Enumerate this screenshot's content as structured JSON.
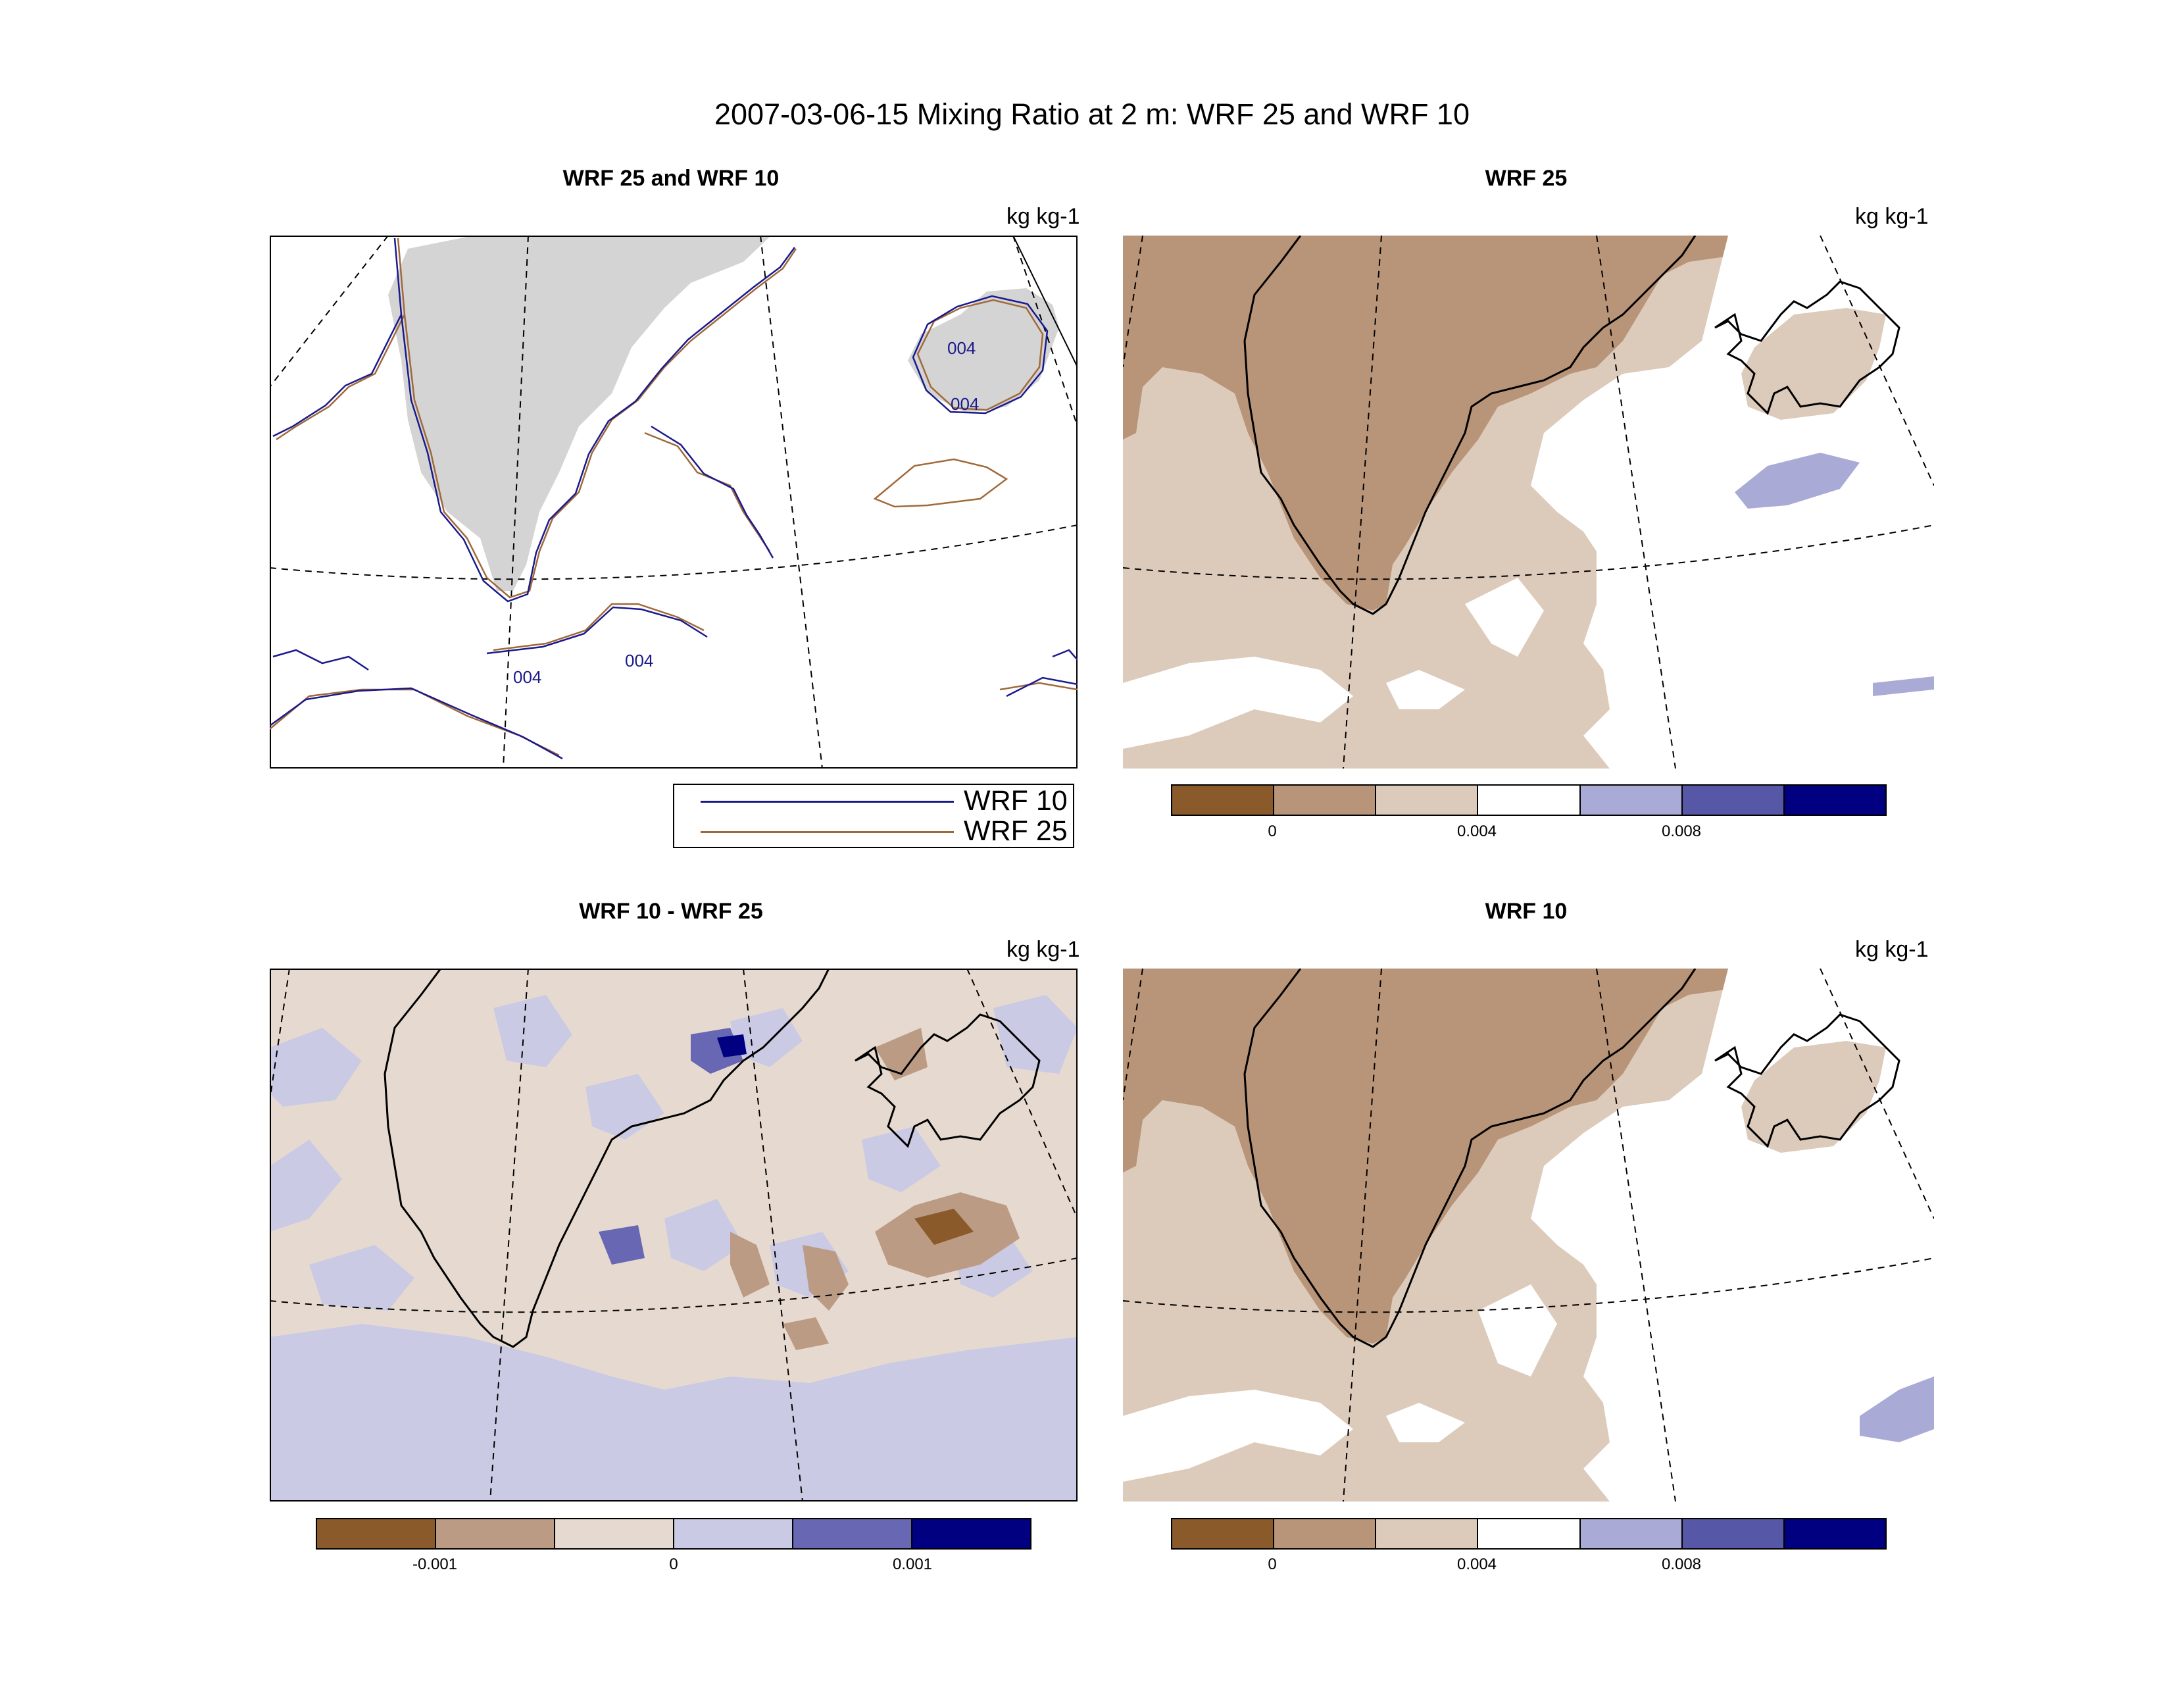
{
  "title": "2007-03-06-15 Mixing Ratio at 2 m: WRF 25 and WRF 10",
  "panels": {
    "top_left": {
      "title": "WRF 25 and WRF 10",
      "units": "kg kg-1"
    },
    "top_right": {
      "title": "WRF 25",
      "units": "kg kg-1"
    },
    "bottom_left": {
      "title": "WRF 10 - WRF 25",
      "units": "kg kg-1"
    },
    "bottom_right": {
      "title": "WRF 10",
      "units": "kg kg-1"
    }
  },
  "contour_labels": [
    "004",
    "004",
    "004",
    "004"
  ],
  "legend": {
    "entries": [
      {
        "label": "WRF 10",
        "color": "#1a1a8c"
      },
      {
        "label": "WRF 25",
        "color": "#a0693a"
      }
    ]
  },
  "colorbars": {
    "mixing_ratio": {
      "colors": [
        "#8b5a2b",
        "#b89478",
        "#dccbbb",
        "#ffffff",
        "#aaaad6",
        "#5757a8",
        "#000080"
      ],
      "tick_labels": [
        "0",
        "0.004",
        "0.008"
      ]
    },
    "difference": {
      "colors": [
        "#8b5a2b",
        "#bc9b84",
        "#e6dad0",
        "#cacae4",
        "#6767b4",
        "#000080"
      ],
      "tick_labels": [
        "-0.001",
        "0",
        "0.001"
      ]
    }
  }
}
